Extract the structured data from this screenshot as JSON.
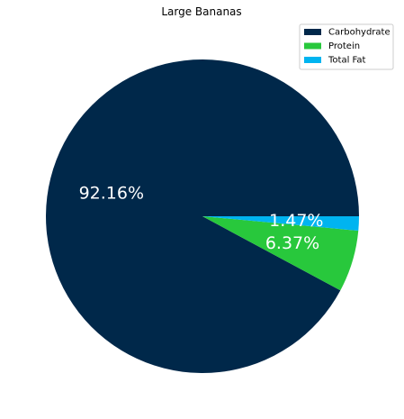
{
  "chart_data": {
    "type": "pie",
    "title": "Large Bananas",
    "categories": [
      "Carbohydrate",
      "Protein",
      "Total Fat"
    ],
    "values": [
      92.16,
      6.37,
      1.47
    ],
    "value_labels": [
      "92.16%",
      "6.37%",
      "1.47%"
    ],
    "colors": [
      "#00284a",
      "#28c83c",
      "#00b4f0"
    ],
    "legend_placement": "top-right",
    "start_angle_deg": 0,
    "direction": "counterclockwise"
  }
}
